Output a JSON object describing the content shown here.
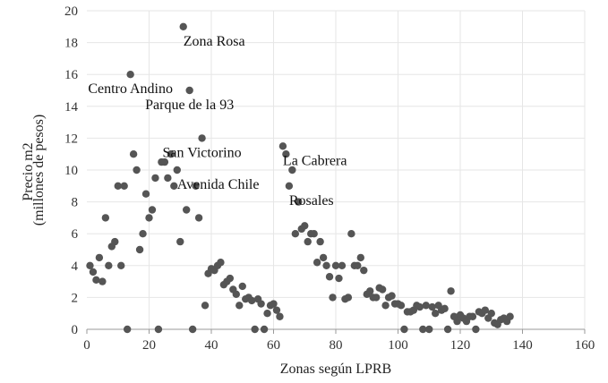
{
  "chart_data": {
    "type": "scatter",
    "title": "",
    "xlabel": "Zonas según LPRB",
    "ylabel_lines": [
      "Precio m2",
      "(millones de pesos)"
    ],
    "xlim": [
      0,
      160
    ],
    "ylim": [
      0,
      20
    ],
    "x_ticks": [
      0,
      20,
      40,
      60,
      80,
      100,
      120,
      140,
      160
    ],
    "y_ticks": [
      0,
      2,
      4,
      6,
      8,
      10,
      12,
      14,
      16,
      18,
      20
    ],
    "grid": true,
    "point_color": "#555555",
    "points": [
      [
        1,
        4.0
      ],
      [
        2,
        3.6
      ],
      [
        3,
        3.1
      ],
      [
        4,
        4.5
      ],
      [
        5,
        3.0
      ],
      [
        6,
        7.0
      ],
      [
        7,
        4.0
      ],
      [
        8,
        5.2
      ],
      [
        9,
        5.5
      ],
      [
        10,
        9.0
      ],
      [
        11,
        4.0
      ],
      [
        12,
        9.0
      ],
      [
        13,
        0.0
      ],
      [
        14,
        16.0
      ],
      [
        15,
        11.0
      ],
      [
        16,
        10.0
      ],
      [
        17,
        5.0
      ],
      [
        18,
        6.0
      ],
      [
        19,
        8.5
      ],
      [
        20,
        7.0
      ],
      [
        21,
        7.5
      ],
      [
        22,
        9.5
      ],
      [
        23,
        0.0
      ],
      [
        24,
        10.5
      ],
      [
        25,
        10.5
      ],
      [
        26,
        9.5
      ],
      [
        27,
        11.0
      ],
      [
        28,
        9.0
      ],
      [
        29,
        10.0
      ],
      [
        30,
        5.5
      ],
      [
        31,
        19.0
      ],
      [
        32,
        7.5
      ],
      [
        33,
        15.0
      ],
      [
        34,
        0.0
      ],
      [
        35,
        9.0
      ],
      [
        36,
        7.0
      ],
      [
        37,
        12.0
      ],
      [
        38,
        1.5
      ],
      [
        39,
        3.5
      ],
      [
        40,
        3.8
      ],
      [
        41,
        3.7
      ],
      [
        42,
        4.0
      ],
      [
        43,
        4.2
      ],
      [
        44,
        2.8
      ],
      [
        45,
        3.0
      ],
      [
        46,
        3.2
      ],
      [
        47,
        2.5
      ],
      [
        48,
        2.2
      ],
      [
        49,
        1.5
      ],
      [
        50,
        2.7
      ],
      [
        51,
        1.9
      ],
      [
        52,
        2.0
      ],
      [
        53,
        1.8
      ],
      [
        54,
        0.0
      ],
      [
        55,
        1.9
      ],
      [
        56,
        1.6
      ],
      [
        57,
        0.0
      ],
      [
        58,
        1.0
      ],
      [
        59,
        1.5
      ],
      [
        60,
        1.6
      ],
      [
        61,
        1.2
      ],
      [
        62,
        0.8
      ],
      [
        63,
        11.5
      ],
      [
        64,
        11.0
      ],
      [
        65,
        9.0
      ],
      [
        66,
        10.0
      ],
      [
        67,
        6.0
      ],
      [
        68,
        8.0
      ],
      [
        69,
        6.3
      ],
      [
        70,
        6.5
      ],
      [
        71,
        5.5
      ],
      [
        72,
        6.0
      ],
      [
        73,
        6.0
      ],
      [
        74,
        4.2
      ],
      [
        75,
        5.5
      ],
      [
        76,
        4.5
      ],
      [
        77,
        4.0
      ],
      [
        78,
        3.3
      ],
      [
        79,
        2.0
      ],
      [
        80,
        4.0
      ],
      [
        81,
        3.2
      ],
      [
        82,
        4.0
      ],
      [
        83,
        1.9
      ],
      [
        84,
        2.0
      ],
      [
        85,
        6.0
      ],
      [
        86,
        4.0
      ],
      [
        87,
        4.0
      ],
      [
        88,
        4.5
      ],
      [
        89,
        3.7
      ],
      [
        90,
        2.2
      ],
      [
        91,
        2.4
      ],
      [
        92,
        2.0
      ],
      [
        93,
        2.0
      ],
      [
        94,
        2.6
      ],
      [
        95,
        2.5
      ],
      [
        96,
        1.5
      ],
      [
        97,
        2.0
      ],
      [
        98,
        2.1
      ],
      [
        99,
        1.6
      ],
      [
        100,
        1.6
      ],
      [
        101,
        1.5
      ],
      [
        102,
        0.0
      ],
      [
        103,
        1.1
      ],
      [
        104,
        1.1
      ],
      [
        105,
        1.2
      ],
      [
        106,
        1.5
      ],
      [
        107,
        1.4
      ],
      [
        108,
        0.0
      ],
      [
        109,
        1.5
      ],
      [
        110,
        0.0
      ],
      [
        111,
        1.4
      ],
      [
        112,
        1.0
      ],
      [
        113,
        1.5
      ],
      [
        114,
        1.2
      ],
      [
        115,
        1.3
      ],
      [
        116,
        0.0
      ],
      [
        117,
        2.4
      ],
      [
        118,
        0.8
      ],
      [
        119,
        0.5
      ],
      [
        120,
        0.9
      ],
      [
        121,
        0.7
      ],
      [
        122,
        0.5
      ],
      [
        123,
        0.8
      ],
      [
        124,
        0.8
      ],
      [
        125,
        0.0
      ],
      [
        126,
        1.1
      ],
      [
        127,
        1.0
      ],
      [
        128,
        1.2
      ],
      [
        129,
        0.7
      ],
      [
        130,
        1.0
      ],
      [
        131,
        0.4
      ],
      [
        132,
        0.3
      ],
      [
        133,
        0.6
      ],
      [
        134,
        0.7
      ],
      [
        135,
        0.5
      ],
      [
        136,
        0.8
      ]
    ],
    "annotations": [
      {
        "label": "Zona Rosa",
        "x": 31,
        "y": 19.0,
        "anchor": "start"
      },
      {
        "label": "Centro Andino",
        "x": 14,
        "y": 16.0,
        "anchor": "middle"
      },
      {
        "label": "Parque de la 93",
        "x": 33,
        "y": 15.0,
        "anchor": "middle"
      },
      {
        "label": "San Victorino",
        "x": 37,
        "y": 12.0,
        "anchor": "middle"
      },
      {
        "label": "La Cabrera",
        "x": 63,
        "y": 11.5,
        "anchor": "start"
      },
      {
        "label": "Avenida Chile",
        "x": 29,
        "y": 10.0,
        "anchor": "start"
      },
      {
        "label": "Rosales",
        "x": 65,
        "y": 9.0,
        "anchor": "start"
      }
    ]
  }
}
